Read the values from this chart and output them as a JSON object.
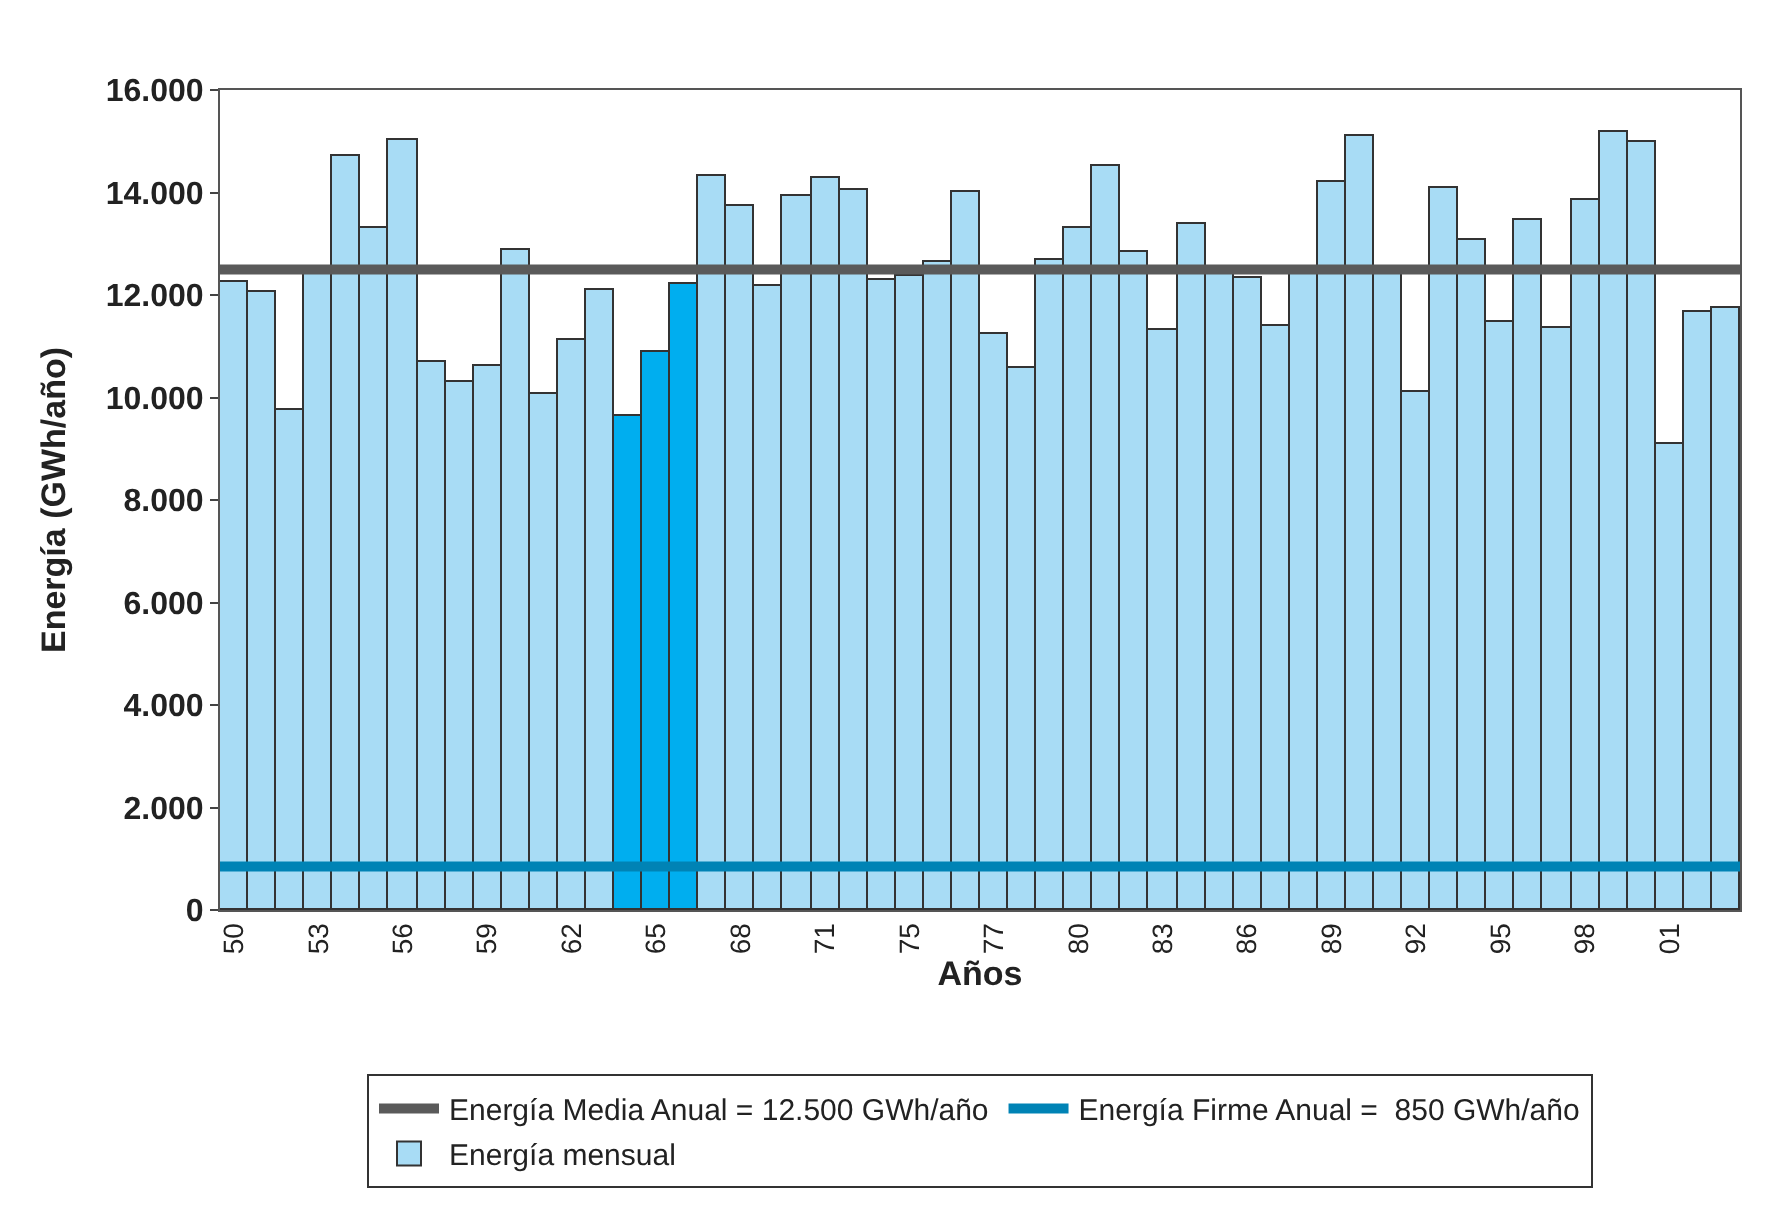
{
  "chart_data": {
    "type": "bar",
    "xlabel": "Años",
    "ylabel": "Energía (GWh/año)",
    "categories": [
      "50",
      null,
      null,
      "53",
      null,
      null,
      "56",
      null,
      null,
      "59",
      null,
      null,
      "62",
      null,
      null,
      "65",
      null,
      null,
      "68",
      null,
      null,
      "71",
      null,
      null,
      "75",
      null,
      null,
      "77",
      null,
      null,
      "80",
      null,
      null,
      "83",
      null,
      null,
      "86",
      null,
      null,
      "89",
      null,
      null,
      "92",
      null,
      null,
      "95",
      null,
      null,
      "98",
      null,
      null,
      "01",
      null,
      null
    ],
    "series": [
      {
        "name": "Energía mensual",
        "colors": [
          "#a8dcf5",
          "#a8dcf5",
          "#a8dcf5",
          "#a8dcf5",
          "#a8dcf5",
          "#a8dcf5",
          "#a8dcf5",
          "#a8dcf5",
          "#a8dcf5",
          "#a8dcf5",
          "#a8dcf5",
          "#a8dcf5",
          "#a8dcf5",
          "#a8dcf5",
          "#00aeef",
          "#00aeef",
          "#00aeef",
          "#a8dcf5",
          "#a8dcf5",
          "#a8dcf5",
          "#a8dcf5",
          "#a8dcf5",
          "#a8dcf5",
          "#a8dcf5",
          "#a8dcf5",
          "#a8dcf5",
          "#a8dcf5",
          "#a8dcf5",
          "#a8dcf5",
          "#a8dcf5",
          "#a8dcf5",
          "#a8dcf5",
          "#a8dcf5",
          "#a8dcf5",
          "#a8dcf5",
          "#a8dcf5",
          "#a8dcf5",
          "#a8dcf5",
          "#a8dcf5",
          "#a8dcf5",
          "#a8dcf5",
          "#a8dcf5",
          "#a8dcf5",
          "#a8dcf5",
          "#a8dcf5",
          "#a8dcf5",
          "#a8dcf5",
          "#a8dcf5",
          "#a8dcf5",
          "#a8dcf5",
          "#a8dcf5",
          "#a8dcf5",
          "#a8dcf5",
          "#a8dcf5"
        ],
        "values": [
          12270,
          12040,
          9770,
          12490,
          14710,
          13300,
          15010,
          10690,
          10320,
          10610,
          12880,
          10080,
          11130,
          12090,
          9650,
          10880,
          12230,
          14310,
          13720,
          12170,
          13950,
          14280,
          14060,
          12300,
          12380,
          12640,
          14010,
          11250,
          10580,
          12700,
          13300,
          14530,
          12840,
          11320,
          13390,
          12520,
          12330,
          11390,
          12450,
          14200,
          15100,
          12530,
          10100,
          14090,
          13090,
          11490,
          13470,
          11360,
          13870,
          15200,
          15000,
          9080,
          11670,
          11750
        ]
      }
    ],
    "ref_lines": [
      {
        "axis": "y",
        "value": 12500,
        "label": "Energía Media Anual = 12.500 GWh/año",
        "color": "#5a5a5a"
      },
      {
        "axis": "y",
        "value": 850,
        "label": "Energía Firme Anual =  850 GWh/año",
        "color": "#0083b5"
      }
    ],
    "ylim": [
      0,
      16000
    ],
    "yticks": [
      0,
      {
        "value": 2000,
        "label": "2.000"
      },
      {
        "value": 4000,
        "label": "4.000"
      },
      {
        "value": 6000,
        "label": "6.000"
      },
      {
        "value": 8000,
        "label": "8.000"
      },
      {
        "value": 10000,
        "label": "10.000"
      },
      {
        "value": 12000,
        "label": "12.000"
      },
      {
        "value": 14000,
        "label": "14.000"
      },
      {
        "value": 16000,
        "label": "16.000"
      }
    ],
    "legend": "bottom"
  }
}
